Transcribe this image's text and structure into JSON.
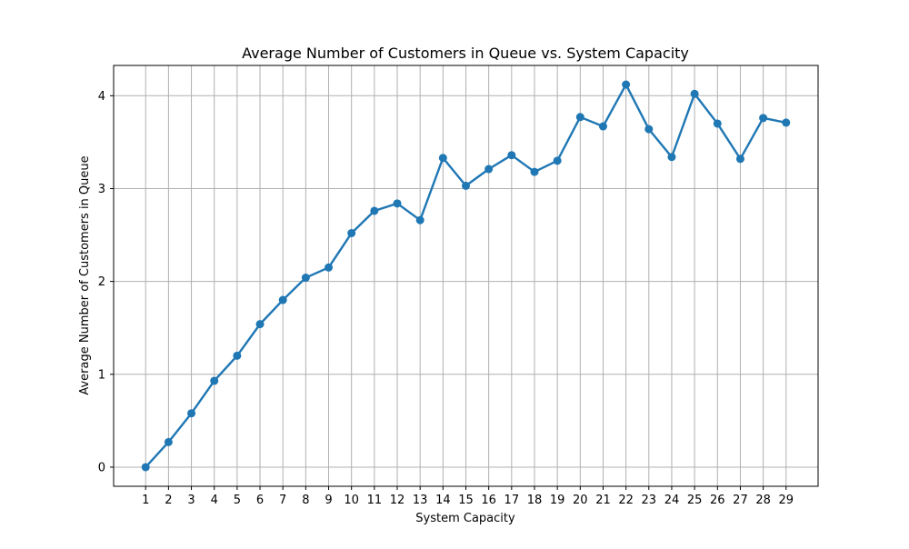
{
  "chart_data": {
    "type": "line",
    "title": "Average Number of Customers in Queue vs. System Capacity",
    "xlabel": "System Capacity",
    "ylabel": "Average Number of Customers in Queue",
    "x": [
      1,
      2,
      3,
      4,
      5,
      6,
      7,
      8,
      9,
      10,
      11,
      12,
      13,
      14,
      15,
      16,
      17,
      18,
      19,
      20,
      21,
      22,
      23,
      24,
      25,
      26,
      27,
      28,
      29
    ],
    "y": [
      0.0,
      0.27,
      0.58,
      0.93,
      1.2,
      1.54,
      1.8,
      2.04,
      2.15,
      2.52,
      2.76,
      2.84,
      2.66,
      3.33,
      3.03,
      3.21,
      3.36,
      3.18,
      3.3,
      3.77,
      3.67,
      4.12,
      3.64,
      3.34,
      4.02,
      3.7,
      3.32,
      3.76,
      3.71
    ],
    "xticks": [
      1,
      2,
      3,
      4,
      5,
      6,
      7,
      8,
      9,
      10,
      11,
      12,
      13,
      14,
      15,
      16,
      17,
      18,
      19,
      20,
      21,
      22,
      23,
      24,
      25,
      26,
      27,
      28,
      29
    ],
    "yticks": [
      0,
      1,
      2,
      3,
      4
    ],
    "xlim": [
      -0.4,
      30.4
    ],
    "ylim": [
      -0.206,
      4.326
    ],
    "grid": true,
    "marker": "circle",
    "colors": {
      "line": "#1f77b4",
      "grid": "#b0b0b0",
      "axes": "#000000"
    }
  }
}
